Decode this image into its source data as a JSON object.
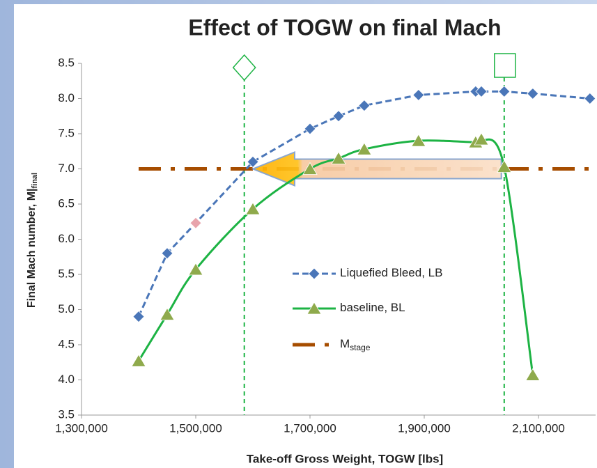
{
  "chart_data": {
    "type": "line",
    "title": "Effect of TOGW on final Mach",
    "xlabel": "Take-off Gross Weight, TOGW [lbs]",
    "ylabel": "Final Mach number, M|",
    "ylabel_sub": "final",
    "xlim": [
      1300000,
      2200000
    ],
    "ylim": [
      3.5,
      8.5
    ],
    "xticks": [
      {
        "value": 1300000,
        "label": "1,300,000"
      },
      {
        "value": 1500000,
        "label": "1,500,000"
      },
      {
        "value": 1700000,
        "label": "1,700,000"
      },
      {
        "value": 1900000,
        "label": "1,900,000"
      },
      {
        "value": 2100000,
        "label": "2,100,000"
      }
    ],
    "yticks": [
      {
        "value": 3.5,
        "label": "3.5"
      },
      {
        "value": 4,
        "label": "4.0"
      },
      {
        "value": 4.5,
        "label": "4.5"
      },
      {
        "value": 5,
        "label": "5.0"
      },
      {
        "value": 5.5,
        "label": "5.5"
      },
      {
        "value": 6,
        "label": "6.0"
      },
      {
        "value": 6.5,
        "label": "6.5"
      },
      {
        "value": 7,
        "label": "7.0"
      },
      {
        "value": 7.5,
        "label": "7.5"
      },
      {
        "value": 8,
        "label": "8.0"
      },
      {
        "value": 8.5,
        "label": "8.5"
      }
    ],
    "series": [
      {
        "name": "Liquefied Bleed, LB",
        "color": "#4a76b8",
        "dash": "9,5",
        "marker": "diamond",
        "smooth": false,
        "x": [
          1400000,
          1450000,
          1500000,
          1600000,
          1700000,
          1750000,
          1795000,
          1890000,
          1990000,
          2000000,
          2040000,
          2090000,
          2190000
        ],
        "values": [
          4.9,
          5.8,
          6.23,
          7.1,
          7.57,
          7.75,
          7.9,
          8.05,
          8.1,
          8.1,
          8.1,
          8.07,
          8.0
        ],
        "point_colors": [
          null,
          null,
          "#e8a4ac",
          null,
          null,
          null,
          null,
          null,
          null,
          null,
          null,
          null,
          null
        ]
      },
      {
        "name": "baseline, BL",
        "color": "#1db344",
        "marker_color": "#8faa4c",
        "marker": "triangle",
        "smooth": true,
        "x": [
          1400000,
          1450000,
          1500000,
          1600000,
          1700000,
          1750000,
          1795000,
          1890000,
          1990000,
          2000000,
          2040000,
          2090000
        ],
        "values": [
          4.27,
          4.93,
          5.57,
          6.43,
          7.0,
          7.15,
          7.28,
          7.4,
          7.38,
          7.42,
          7.03,
          4.07
        ]
      },
      {
        "name": "M",
        "name_sub": "stage",
        "color": "#a64d00",
        "dash": "32,14,6,14",
        "marker": "none",
        "smooth": false,
        "x": [
          1400000,
          2200000
        ],
        "values": [
          7.0,
          7.0
        ]
      }
    ],
    "reference_lines": [
      {
        "x": 1585000,
        "marker": "diamond"
      },
      {
        "x": 2040000,
        "marker": "square"
      }
    ],
    "arrow": {
      "from": 2035000,
      "to": 1600000,
      "y": 7.0
    }
  }
}
